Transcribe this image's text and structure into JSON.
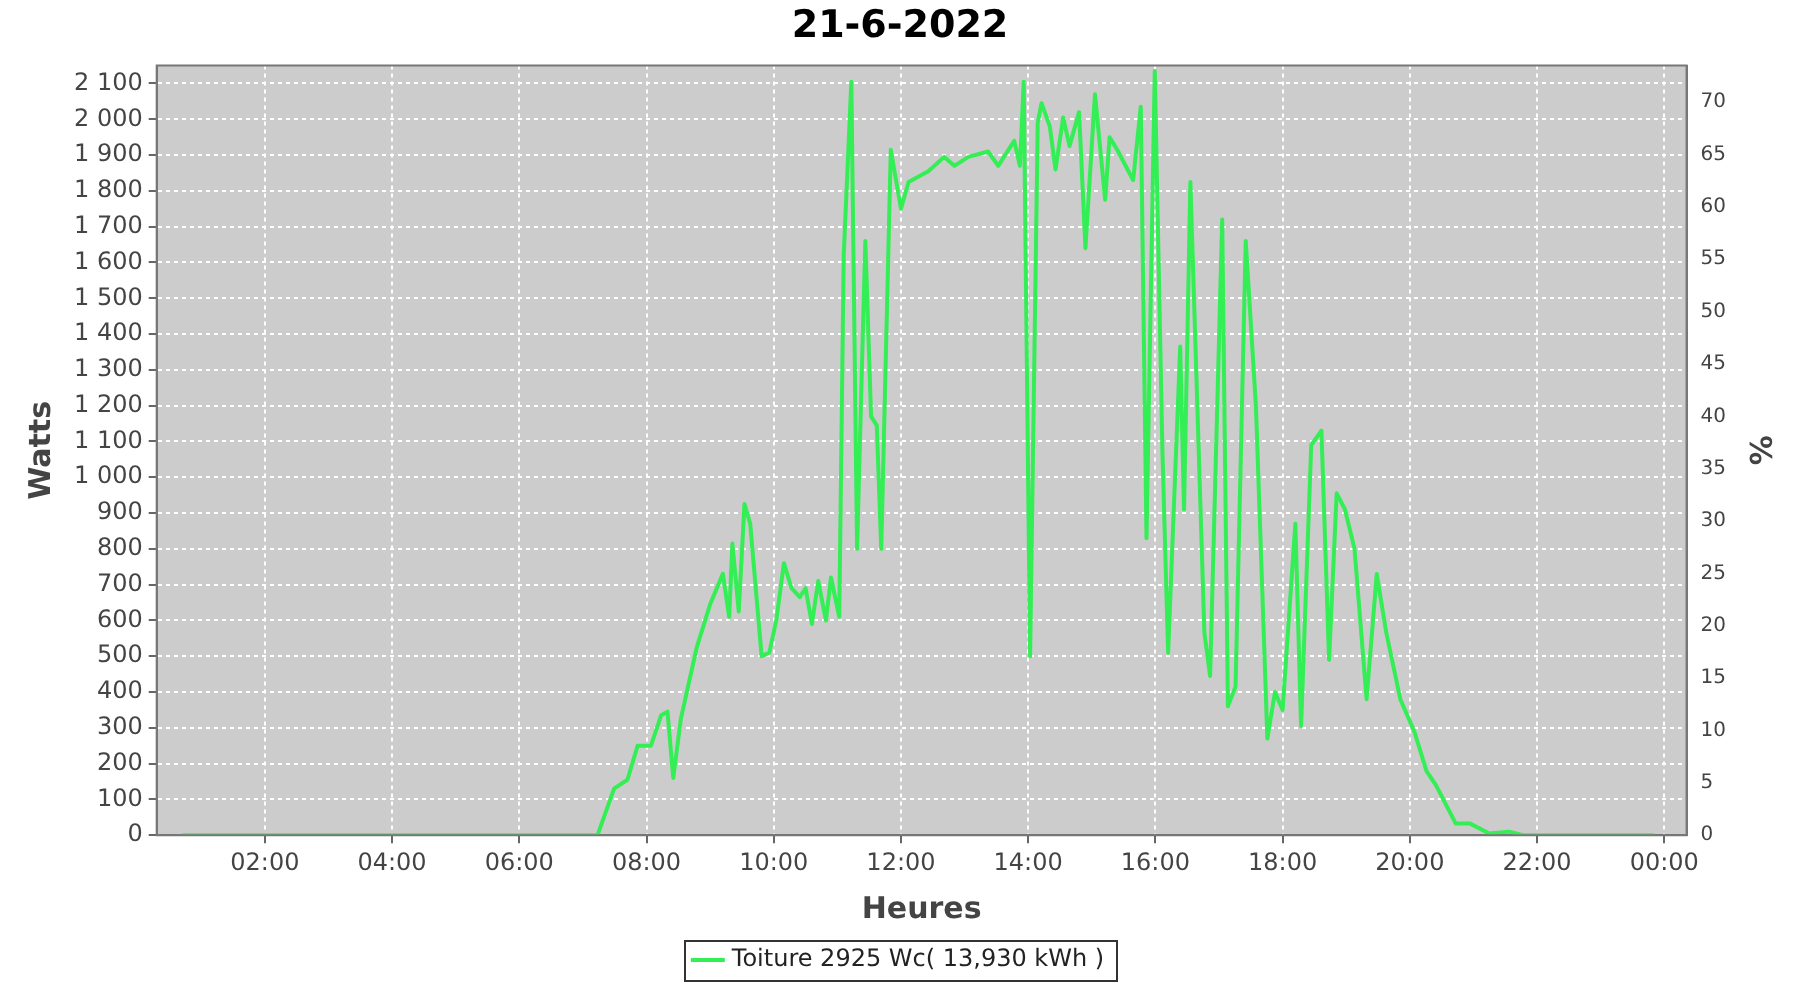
{
  "chart_data": {
    "type": "line",
    "title": "21-6-2022",
    "xlabel": "Heures",
    "ylabel": "Watts",
    "y2label": "%",
    "xlim": [
      0.3,
      24.35
    ],
    "ylim": [
      0,
      2150
    ],
    "y2lim": [
      0,
      73.5
    ],
    "xticks": [
      {
        "value": 2,
        "label": "02:00"
      },
      {
        "value": 4,
        "label": "04:00"
      },
      {
        "value": 6,
        "label": "06:00"
      },
      {
        "value": 8,
        "label": "08:00"
      },
      {
        "value": 10,
        "label": "10:00"
      },
      {
        "value": 12,
        "label": "12:00"
      },
      {
        "value": 14,
        "label": "14:00"
      },
      {
        "value": 16,
        "label": "16:00"
      },
      {
        "value": 18,
        "label": "18:00"
      },
      {
        "value": 20,
        "label": "20:00"
      },
      {
        "value": 22,
        "label": "22:00"
      },
      {
        "value": 24,
        "label": "00:00"
      }
    ],
    "yticks": [
      0,
      100,
      200,
      300,
      400,
      500,
      600,
      700,
      800,
      900,
      {
        "value": 1000,
        "label": "1 000"
      },
      {
        "value": 1100,
        "label": "1 100"
      },
      {
        "value": 1200,
        "label": "1 200"
      },
      {
        "value": 1300,
        "label": "1 300"
      },
      {
        "value": 1400,
        "label": "1 400"
      },
      {
        "value": 1500,
        "label": "1 500"
      },
      {
        "value": 1600,
        "label": "1 600"
      },
      {
        "value": 1700,
        "label": "1 700"
      },
      {
        "value": 1800,
        "label": "1 800"
      },
      {
        "value": 1900,
        "label": "1 900"
      },
      {
        "value": 2000,
        "label": "2 000"
      },
      {
        "value": 2100,
        "label": "2 100"
      }
    ],
    "y2ticks": [
      0,
      5,
      10,
      15,
      20,
      25,
      30,
      35,
      40,
      45,
      50,
      55,
      60,
      65,
      70
    ],
    "grid": true,
    "legend": "bottom",
    "marker": "none",
    "line_style": "solid",
    "series": [
      {
        "name": "Toiture 2925 Wc( 13,930 kWh )",
        "color": "#33ee55",
        "x": [
          0.7,
          6.9,
          7.23,
          7.49,
          7.7,
          7.86,
          8.07,
          8.23,
          8.33,
          8.42,
          8.54,
          8.79,
          9.0,
          9.2,
          9.3,
          9.35,
          9.45,
          9.54,
          9.63,
          9.81,
          9.93,
          10.04,
          10.16,
          10.28,
          10.41,
          10.5,
          10.6,
          10.7,
          10.82,
          10.9,
          11.03,
          11.1,
          11.22,
          11.31,
          11.44,
          11.53,
          11.62,
          11.69,
          11.84,
          12.0,
          12.12,
          12.43,
          12.68,
          12.84,
          13.06,
          13.37,
          13.53,
          13.78,
          13.87,
          13.93,
          14.03,
          14.15,
          14.21,
          14.34,
          14.43,
          14.55,
          14.65,
          14.8,
          14.9,
          15.05,
          15.21,
          15.28,
          15.4,
          15.65,
          15.77,
          15.86,
          15.99,
          16.11,
          16.2,
          16.39,
          16.45,
          16.55,
          16.77,
          16.86,
          17.05,
          17.14,
          17.26,
          17.42,
          17.58,
          17.76,
          17.88,
          18.0,
          18.2,
          18.29,
          18.45,
          18.61,
          18.73,
          18.85,
          18.98,
          19.13,
          19.32,
          19.48,
          19.63,
          19.85,
          20.07,
          20.26,
          20.41,
          20.72,
          20.94,
          21.25,
          21.56,
          21.78,
          23.84
        ],
        "values": [
          0,
          0,
          0,
          130,
          155,
          250,
          250,
          335,
          345,
          160,
          325,
          525,
          645,
          730,
          610,
          815,
          625,
          925,
          870,
          500,
          510,
          600,
          760,
          690,
          665,
          690,
          590,
          710,
          600,
          720,
          610,
          1620,
          2105,
          800,
          1660,
          1170,
          1145,
          800,
          1915,
          1750,
          1825,
          1855,
          1895,
          1870,
          1895,
          1910,
          1870,
          1940,
          1870,
          2105,
          500,
          1990,
          2045,
          1980,
          1860,
          2005,
          1925,
          2020,
          1640,
          2070,
          1775,
          1950,
          1915,
          1830,
          2035,
          830,
          2135,
          1075,
          510,
          1365,
          910,
          1825,
          565,
          445,
          1720,
          360,
          415,
          1660,
          1200,
          270,
          400,
          350,
          870,
          305,
          1090,
          1130,
          490,
          955,
          910,
          800,
          380,
          730,
          565,
          380,
          290,
          180,
          140,
          33,
          33,
          5,
          10,
          0,
          0
        ]
      }
    ]
  }
}
